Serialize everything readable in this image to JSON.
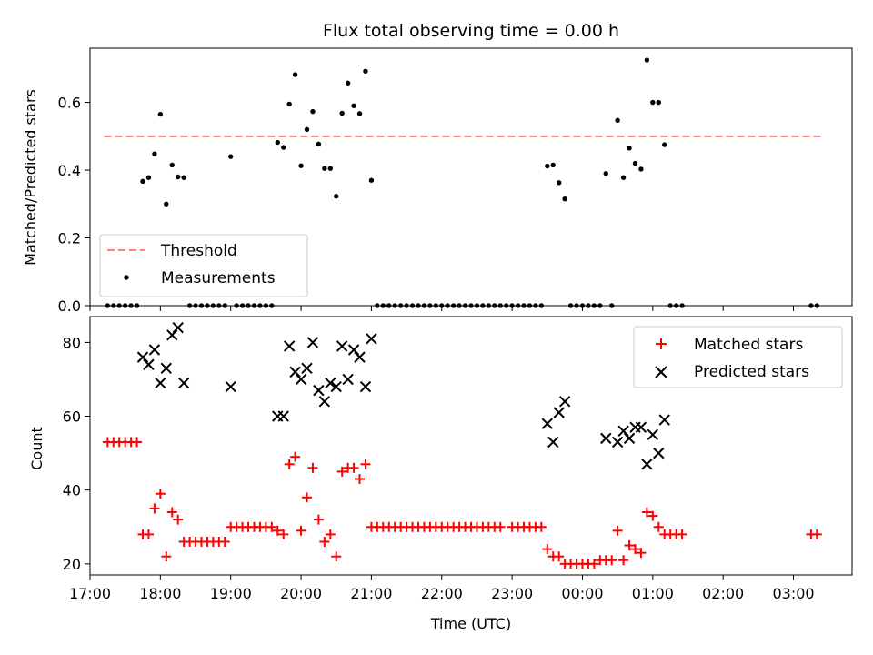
{
  "chart_data": [
    {
      "type": "scatter",
      "title": "Flux total observing time = 0.00 h",
      "xlabel": "",
      "ylabel": "Matched/Predicted stars",
      "xlim": [
        "17:00",
        "03:50"
      ],
      "ylim": [
        0,
        0.76
      ],
      "yticks": [
        "0.0",
        "0.2",
        "0.4",
        "0.6"
      ],
      "legend_position": "lower-left",
      "threshold": {
        "name": "Threshold",
        "value": 0.5,
        "x_start": "17:12",
        "x_end": "03:25",
        "color": "#ff7f7f",
        "style": "dashed"
      },
      "series": [
        {
          "name": "Measurements",
          "color": "#000000",
          "marker": "dot",
          "points": [
            [
              "17:15",
              0
            ],
            [
              "17:20",
              0
            ],
            [
              "17:25",
              0
            ],
            [
              "17:30",
              0
            ],
            [
              "17:35",
              0
            ],
            [
              "17:40",
              0
            ],
            [
              "17:45",
              0.367
            ],
            [
              "17:50",
              0.378
            ],
            [
              "17:55",
              0.448
            ],
            [
              "18:00",
              0.565
            ],
            [
              "18:05",
              0.3
            ],
            [
              "18:10",
              0.415
            ],
            [
              "18:15",
              0.38
            ],
            [
              "18:20",
              0.378
            ],
            [
              "18:25",
              0
            ],
            [
              "18:30",
              0
            ],
            [
              "18:35",
              0
            ],
            [
              "18:40",
              0
            ],
            [
              "18:45",
              0
            ],
            [
              "18:50",
              0
            ],
            [
              "18:55",
              0
            ],
            [
              "19:00",
              0.44
            ],
            [
              "19:05",
              0
            ],
            [
              "19:10",
              0
            ],
            [
              "19:15",
              0
            ],
            [
              "19:20",
              0
            ],
            [
              "19:25",
              0
            ],
            [
              "19:30",
              0
            ],
            [
              "19:35",
              0
            ],
            [
              "19:40",
              0.482
            ],
            [
              "19:45",
              0.467
            ],
            [
              "19:50",
              0.595
            ],
            [
              "19:55",
              0.682
            ],
            [
              "20:00",
              0.413
            ],
            [
              "20:05",
              0.52
            ],
            [
              "20:10",
              0.573
            ],
            [
              "20:15",
              0.477
            ],
            [
              "20:20",
              0.405
            ],
            [
              "20:25",
              0.405
            ],
            [
              "20:30",
              0.323
            ],
            [
              "20:35",
              0.568
            ],
            [
              "20:40",
              0.657
            ],
            [
              "20:45",
              0.59
            ],
            [
              "20:50",
              0.567
            ],
            [
              "20:55",
              0.692
            ],
            [
              "21:00",
              0.37
            ],
            [
              "21:05",
              0
            ],
            [
              "21:10",
              0
            ],
            [
              "21:15",
              0
            ],
            [
              "21:20",
              0
            ],
            [
              "21:25",
              0
            ],
            [
              "21:30",
              0
            ],
            [
              "21:35",
              0
            ],
            [
              "21:40",
              0
            ],
            [
              "21:45",
              0
            ],
            [
              "21:50",
              0
            ],
            [
              "21:55",
              0
            ],
            [
              "22:00",
              0
            ],
            [
              "22:05",
              0
            ],
            [
              "22:10",
              0
            ],
            [
              "22:15",
              0
            ],
            [
              "22:20",
              0
            ],
            [
              "22:25",
              0
            ],
            [
              "22:30",
              0
            ],
            [
              "22:35",
              0
            ],
            [
              "22:40",
              0
            ],
            [
              "22:45",
              0
            ],
            [
              "22:50",
              0
            ],
            [
              "22:55",
              0
            ],
            [
              "23:00",
              0
            ],
            [
              "23:05",
              0
            ],
            [
              "23:10",
              0
            ],
            [
              "23:15",
              0
            ],
            [
              "23:20",
              0
            ],
            [
              "23:25",
              0
            ],
            [
              "23:30",
              0.412
            ],
            [
              "23:35",
              0.415
            ],
            [
              "23:40",
              0.363
            ],
            [
              "23:45",
              0.315
            ],
            [
              "23:50",
              0
            ],
            [
              "23:55",
              0
            ],
            [
              "00:00",
              0
            ],
            [
              "00:05",
              0
            ],
            [
              "00:10",
              0
            ],
            [
              "00:15",
              0
            ],
            [
              "00:25",
              0
            ],
            [
              "00:20",
              0.39
            ],
            [
              "00:30",
              0.547
            ],
            [
              "00:35",
              0.378
            ],
            [
              "00:40",
              0.465
            ],
            [
              "00:45",
              0.42
            ],
            [
              "00:50",
              0.403
            ],
            [
              "00:55",
              0.725
            ],
            [
              "01:00",
              0.6
            ],
            [
              "01:05",
              0.6
            ],
            [
              "01:10",
              0.475
            ],
            [
              "01:15",
              0
            ],
            [
              "01:20",
              0
            ],
            [
              "01:25",
              0
            ],
            [
              "03:15",
              0
            ],
            [
              "03:20",
              0
            ]
          ]
        }
      ]
    },
    {
      "type": "scatter",
      "title": "",
      "xlabel": "Time (UTC)",
      "ylabel": "Count",
      "xlim": [
        "17:00",
        "03:50"
      ],
      "ylim": [
        17,
        87
      ],
      "yticks": [
        "20",
        "40",
        "60",
        "80"
      ],
      "xticks": [
        "17:00",
        "18:00",
        "19:00",
        "20:00",
        "21:00",
        "22:00",
        "23:00",
        "00:00",
        "01:00",
        "02:00",
        "03:00"
      ],
      "legend_position": "upper-right",
      "series": [
        {
          "name": "Matched stars",
          "color": "#ff0000",
          "marker": "plus",
          "points": [
            [
              "17:15",
              53
            ],
            [
              "17:20",
              53
            ],
            [
              "17:25",
              53
            ],
            [
              "17:30",
              53
            ],
            [
              "17:35",
              53
            ],
            [
              "17:40",
              53
            ],
            [
              "17:45",
              28
            ],
            [
              "17:50",
              28
            ],
            [
              "17:55",
              35
            ],
            [
              "18:00",
              39
            ],
            [
              "18:05",
              22
            ],
            [
              "18:10",
              34
            ],
            [
              "18:15",
              32
            ],
            [
              "18:20",
              26
            ],
            [
              "18:25",
              26
            ],
            [
              "18:30",
              26
            ],
            [
              "18:35",
              26
            ],
            [
              "18:40",
              26
            ],
            [
              "18:45",
              26
            ],
            [
              "18:50",
              26
            ],
            [
              "18:55",
              26
            ],
            [
              "19:00",
              30
            ],
            [
              "19:05",
              30
            ],
            [
              "19:10",
              30
            ],
            [
              "19:15",
              30
            ],
            [
              "19:20",
              30
            ],
            [
              "19:25",
              30
            ],
            [
              "19:30",
              30
            ],
            [
              "19:35",
              30
            ],
            [
              "19:40",
              29
            ],
            [
              "19:45",
              28
            ],
            [
              "19:50",
              47
            ],
            [
              "19:55",
              49
            ],
            [
              "20:00",
              29
            ],
            [
              "20:05",
              38
            ],
            [
              "20:10",
              46
            ],
            [
              "20:15",
              32
            ],
            [
              "20:20",
              26
            ],
            [
              "20:25",
              28
            ],
            [
              "20:30",
              22
            ],
            [
              "20:35",
              45
            ],
            [
              "20:40",
              46
            ],
            [
              "20:45",
              46
            ],
            [
              "20:50",
              43
            ],
            [
              "20:55",
              47
            ],
            [
              "21:00",
              30
            ],
            [
              "21:05",
              30
            ],
            [
              "21:10",
              30
            ],
            [
              "21:15",
              30
            ],
            [
              "21:20",
              30
            ],
            [
              "21:25",
              30
            ],
            [
              "21:30",
              30
            ],
            [
              "21:35",
              30
            ],
            [
              "21:40",
              30
            ],
            [
              "21:45",
              30
            ],
            [
              "21:50",
              30
            ],
            [
              "21:55",
              30
            ],
            [
              "22:00",
              30
            ],
            [
              "22:05",
              30
            ],
            [
              "22:10",
              30
            ],
            [
              "22:15",
              30
            ],
            [
              "22:20",
              30
            ],
            [
              "22:25",
              30
            ],
            [
              "22:30",
              30
            ],
            [
              "22:35",
              30
            ],
            [
              "22:40",
              30
            ],
            [
              "22:45",
              30
            ],
            [
              "22:50",
              30
            ],
            [
              "23:00",
              30
            ],
            [
              "23:05",
              30
            ],
            [
              "23:10",
              30
            ],
            [
              "23:15",
              30
            ],
            [
              "23:20",
              30
            ],
            [
              "23:25",
              30
            ],
            [
              "23:30",
              24
            ],
            [
              "23:35",
              22
            ],
            [
              "23:40",
              22
            ],
            [
              "23:45",
              20
            ],
            [
              "23:50",
              20
            ],
            [
              "23:55",
              20
            ],
            [
              "00:00",
              20
            ],
            [
              "00:05",
              20
            ],
            [
              "00:10",
              20
            ],
            [
              "00:15",
              21
            ],
            [
              "00:20",
              21
            ],
            [
              "00:25",
              21
            ],
            [
              "00:30",
              29
            ],
            [
              "00:35",
              21
            ],
            [
              "00:40",
              25
            ],
            [
              "00:45",
              24
            ],
            [
              "00:50",
              23
            ],
            [
              "00:55",
              34
            ],
            [
              "01:00",
              33
            ],
            [
              "01:05",
              30
            ],
            [
              "01:10",
              28
            ],
            [
              "01:15",
              28
            ],
            [
              "01:20",
              28
            ],
            [
              "01:25",
              28
            ],
            [
              "03:15",
              28
            ],
            [
              "03:20",
              28
            ]
          ]
        },
        {
          "name": "Predicted stars",
          "color": "#000000",
          "marker": "x",
          "points": [
            [
              "17:45",
              76
            ],
            [
              "17:50",
              74
            ],
            [
              "17:55",
              78
            ],
            [
              "18:00",
              69
            ],
            [
              "18:05",
              73
            ],
            [
              "18:10",
              82
            ],
            [
              "18:15",
              84
            ],
            [
              "18:20",
              69
            ],
            [
              "19:00",
              68
            ],
            [
              "19:40",
              60
            ],
            [
              "19:45",
              60
            ],
            [
              "19:50",
              79
            ],
            [
              "19:55",
              72
            ],
            [
              "20:00",
              70
            ],
            [
              "20:05",
              73
            ],
            [
              "20:10",
              80
            ],
            [
              "20:15",
              67
            ],
            [
              "20:20",
              64
            ],
            [
              "20:25",
              69
            ],
            [
              "20:30",
              68
            ],
            [
              "20:35",
              79
            ],
            [
              "20:40",
              70
            ],
            [
              "20:45",
              78
            ],
            [
              "20:50",
              76
            ],
            [
              "20:55",
              68
            ],
            [
              "21:00",
              81
            ],
            [
              "23:30",
              58
            ],
            [
              "23:35",
              53
            ],
            [
              "23:40",
              61
            ],
            [
              "23:45",
              64
            ],
            [
              "00:20",
              54
            ],
            [
              "00:30",
              53
            ],
            [
              "00:35",
              56
            ],
            [
              "00:40",
              54
            ],
            [
              "00:45",
              57
            ],
            [
              "00:50",
              57
            ],
            [
              "00:55",
              47
            ],
            [
              "01:00",
              55
            ],
            [
              "01:05",
              50
            ],
            [
              "01:10",
              59
            ]
          ]
        }
      ]
    }
  ]
}
